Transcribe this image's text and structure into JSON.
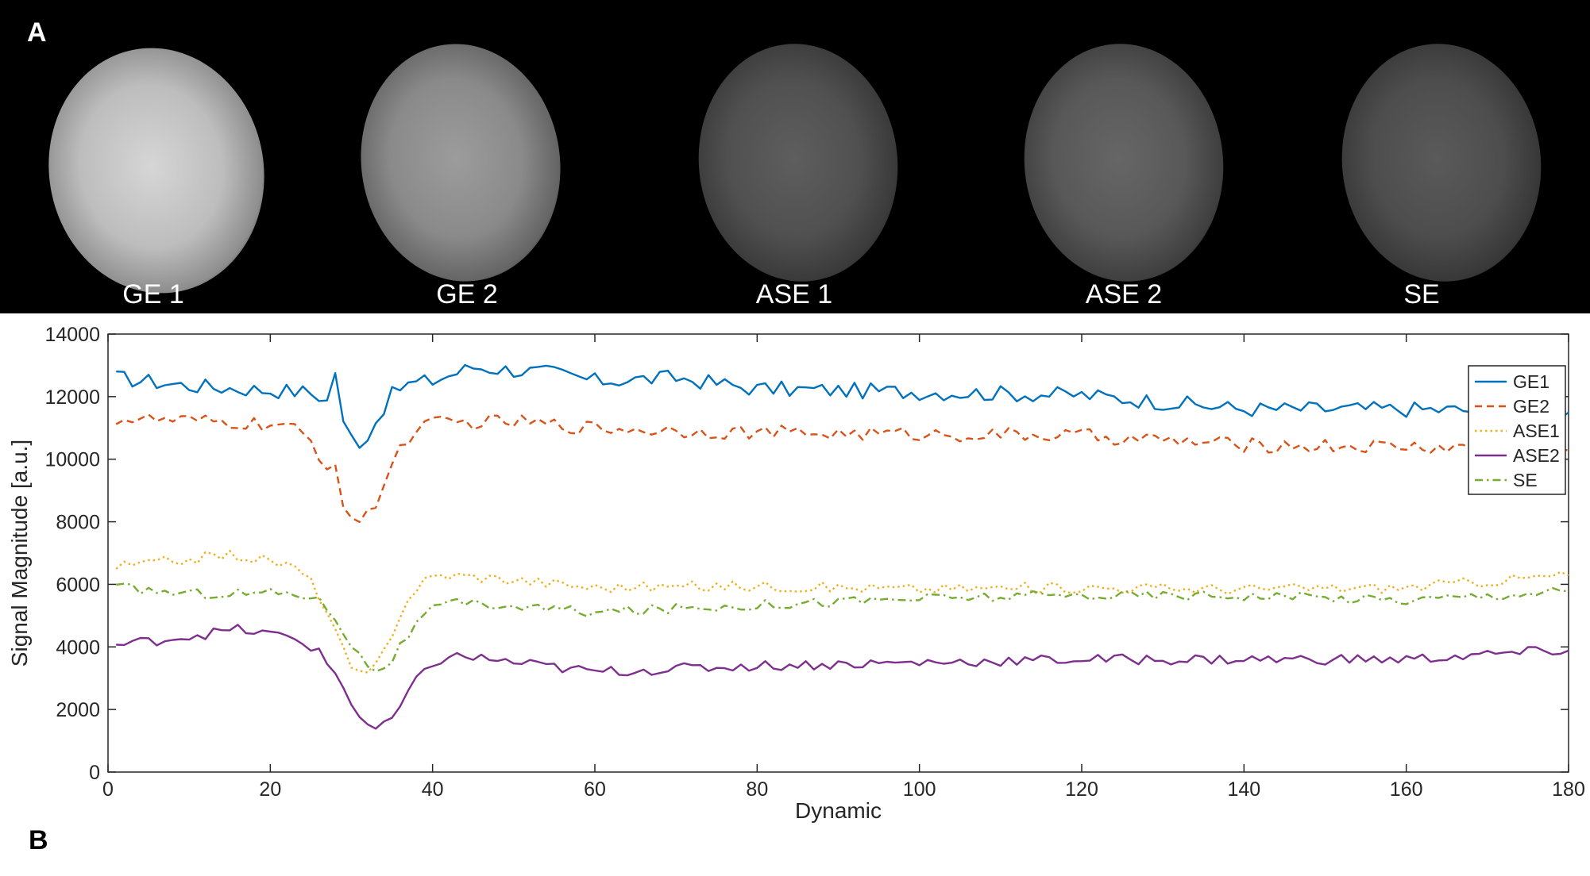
{
  "panel_a": {
    "letter": "A",
    "images": [
      {
        "label": "GE 1",
        "brightness": "bright"
      },
      {
        "label": "GE 2",
        "brightness": "medium"
      },
      {
        "label": "ASE 1",
        "brightness": "dim"
      },
      {
        "label": "ASE 2",
        "brightness": "dim"
      },
      {
        "label": "SE",
        "brightness": "dim"
      }
    ]
  },
  "panel_b": {
    "letter": "B"
  },
  "chart_data": {
    "type": "line",
    "title": "",
    "xlabel": "Dynamic",
    "ylabel": "Signal Magnitude [a.u.]",
    "xlim": [
      0,
      180
    ],
    "ylim": [
      0,
      14000
    ],
    "xticks": [
      0,
      20,
      40,
      60,
      80,
      100,
      120,
      140,
      160,
      180
    ],
    "yticks": [
      0,
      2000,
      4000,
      6000,
      8000,
      10000,
      12000,
      14000
    ],
    "legend_position": "top-right",
    "series": [
      {
        "name": "GE1",
        "color": "#0072BD",
        "style": "solid",
        "baseline": [
          [
            1,
            12600
          ],
          [
            10,
            12350
          ],
          [
            20,
            12200
          ],
          [
            26,
            12150
          ],
          [
            40,
            12500
          ],
          [
            45,
            12950
          ],
          [
            55,
            12750
          ],
          [
            60,
            12500
          ],
          [
            70,
            12600
          ],
          [
            80,
            12250
          ],
          [
            100,
            12150
          ],
          [
            120,
            12050
          ],
          [
            140,
            11600
          ],
          [
            160,
            11600
          ],
          [
            180,
            11500
          ]
        ],
        "dip": {
          "center": 31,
          "depth": 1700,
          "width": 2.2
        },
        "spikes": [
          [
            28,
            1300
          ]
        ],
        "noise": 260
      },
      {
        "name": "GE2",
        "color": "#D95319",
        "style": "dashed",
        "baseline": [
          [
            1,
            11300
          ],
          [
            20,
            11100
          ],
          [
            26,
            10900
          ],
          [
            40,
            11150
          ],
          [
            50,
            11200
          ],
          [
            60,
            11000
          ],
          [
            80,
            10850
          ],
          [
            100,
            10800
          ],
          [
            120,
            10750
          ],
          [
            140,
            10450
          ],
          [
            160,
            10400
          ],
          [
            180,
            10300
          ]
        ],
        "dip": {
          "center": 31,
          "depth": 3000,
          "width": 3.0
        },
        "spikes": [
          [
            28,
            900
          ]
        ],
        "noise": 230
      },
      {
        "name": "ASE1",
        "color": "#EDB120",
        "style": "dotted",
        "baseline": [
          [
            1,
            6550
          ],
          [
            15,
            6950
          ],
          [
            25,
            6550
          ],
          [
            28,
            6350
          ],
          [
            40,
            6350
          ],
          [
            50,
            6150
          ],
          [
            60,
            5900
          ],
          [
            80,
            5950
          ],
          [
            100,
            5850
          ],
          [
            120,
            5900
          ],
          [
            140,
            5850
          ],
          [
            160,
            5900
          ],
          [
            180,
            6300
          ]
        ],
        "dip": {
          "center": 31.5,
          "depth": 3300,
          "width": 3.3
        },
        "spikes": [],
        "noise": 170
      },
      {
        "name": "ASE2",
        "color": "#7E2F8E",
        "style": "solid",
        "baseline": [
          [
            1,
            4050
          ],
          [
            16,
            4550
          ],
          [
            26,
            4200
          ],
          [
            40,
            3850
          ],
          [
            50,
            3500
          ],
          [
            60,
            3200
          ],
          [
            80,
            3400
          ],
          [
            100,
            3500
          ],
          [
            120,
            3600
          ],
          [
            140,
            3600
          ],
          [
            160,
            3600
          ],
          [
            180,
            3900
          ]
        ],
        "dip": {
          "center": 33,
          "depth": 2650,
          "width": 3.6
        },
        "spikes": [],
        "noise": 170
      },
      {
        "name": "SE",
        "color": "#77AC30",
        "style": "dashdot",
        "baseline": [
          [
            1,
            5900
          ],
          [
            10,
            5700
          ],
          [
            26,
            5750
          ],
          [
            40,
            5450
          ],
          [
            50,
            5300
          ],
          [
            60,
            5100
          ],
          [
            80,
            5350
          ],
          [
            100,
            5550
          ],
          [
            120,
            5650
          ],
          [
            140,
            5650
          ],
          [
            160,
            5500
          ],
          [
            180,
            5800
          ]
        ],
        "dip": {
          "center": 33,
          "depth": 2300,
          "width": 3.4
        },
        "spikes": [],
        "noise": 160
      }
    ]
  }
}
